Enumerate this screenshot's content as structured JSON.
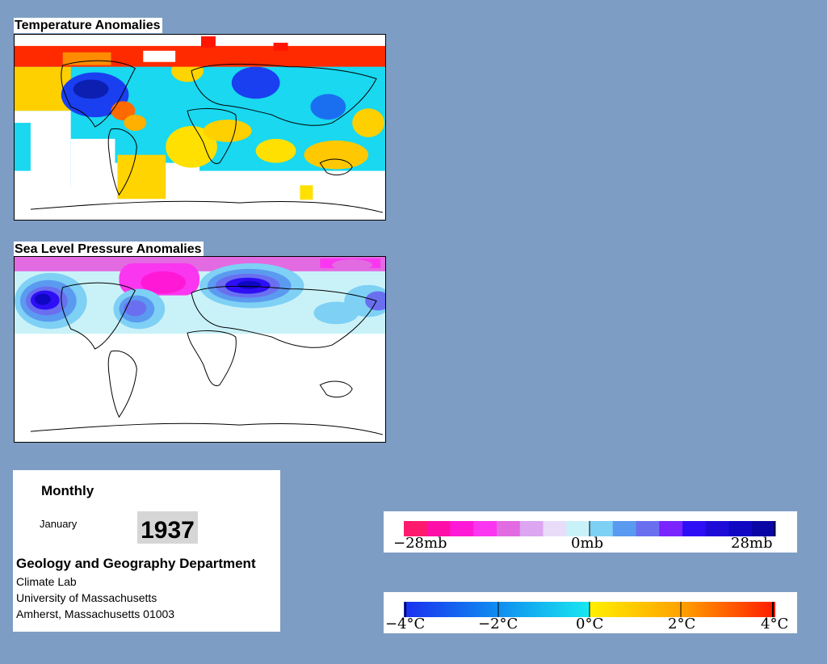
{
  "temperature_map": {
    "title": "Temperature Anomalies"
  },
  "pressure_map": {
    "title": "Sea Level Pressure Anomalies"
  },
  "info": {
    "period": "Monthly",
    "month": "January",
    "year": "1937",
    "department": "Geology and Geography Department",
    "lines": [
      "Climate Lab",
      "University of Massachusetts",
      "Amherst, Massachusetts 01003"
    ]
  },
  "pressure_legend": {
    "labels": [
      "−28mb",
      "0mb",
      "28mb"
    ],
    "colors": [
      "#ff1a6e",
      "#ff0fa8",
      "#ff19d7",
      "#fb36f0",
      "#e26be2",
      "#dca6f0",
      "#e8dcf8",
      "#c9f2f8",
      "#7ed0f5",
      "#5a9af0",
      "#6a6ff0",
      "#7a24ff",
      "#2e0ff5",
      "#1e0bd8",
      "#0f07c2",
      "#0a06a4"
    ]
  },
  "temperature_legend": {
    "labels": [
      "−4°C",
      "−2°C",
      "0°C",
      "2°C",
      "4°C"
    ],
    "colors": [
      "#1a2ff0",
      "#0f8cf0",
      "#19d8f0",
      "#fff000",
      "#ffb000",
      "#ff5a00",
      "#ff1a00"
    ]
  },
  "colors": {
    "background": "#7d9dc4"
  }
}
